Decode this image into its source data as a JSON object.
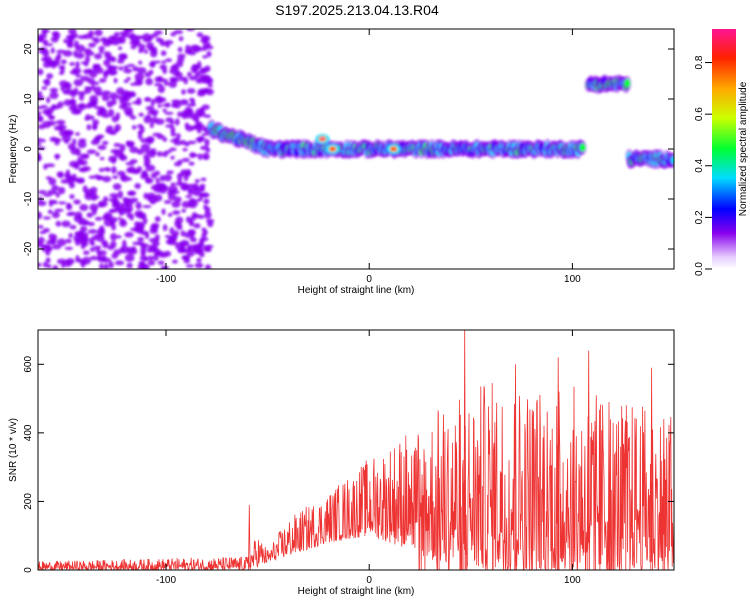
{
  "title": "S197.2025.213.04.13.R04",
  "chart_data": [
    {
      "type": "heatmap",
      "xlabel": "Height of straight line (km)",
      "ylabel": "Frequency (Hz)",
      "xlim": [
        -163,
        150
      ],
      "ylim": [
        -24,
        24
      ],
      "xticks": [
        -100,
        0,
        100
      ],
      "yticks": [
        -20,
        -10,
        0,
        10,
        20
      ],
      "colorbar": {
        "label": "Normalized spectral amplitude",
        "ticks": [
          0.0,
          0.2,
          0.4,
          0.6,
          0.8
        ],
        "range": [
          0,
          0.93
        ]
      },
      "features": [
        {
          "kind": "noise",
          "x": [
            -163,
            -78
          ],
          "y": [
            -24,
            24
          ],
          "amplitude": 0.12
        },
        {
          "kind": "ridge",
          "x": [
            -78,
            -50
          ],
          "y_start": 4,
          "y_end": 0,
          "amplitude": 0.35
        },
        {
          "kind": "ridge",
          "x": [
            -50,
            105
          ],
          "y": 0,
          "amplitude": 0.3
        },
        {
          "kind": "blob",
          "x": -23,
          "y": 2,
          "amplitude": 0.85
        },
        {
          "kind": "blob",
          "x": -18,
          "y": 0,
          "amplitude": 0.8
        },
        {
          "kind": "blob",
          "x": 12,
          "y": 0,
          "amplitude": 0.8
        },
        {
          "kind": "ridge",
          "x": [
            108,
            127
          ],
          "y": 13,
          "amplitude": 0.35
        },
        {
          "kind": "ridge",
          "x": [
            128,
            150
          ],
          "y": -2,
          "amplitude": 0.3
        }
      ]
    },
    {
      "type": "line",
      "xlabel": "Height of straight line (km)",
      "ylabel": "SNR (10 * v/v)",
      "xlim": [
        -163,
        150
      ],
      "ylim": [
        0,
        700
      ],
      "xticks": [
        -100,
        0,
        100
      ],
      "yticks": [
        0,
        200,
        400,
        600
      ],
      "color": "#ee3333",
      "envelope": [
        {
          "x": -163,
          "lo": 0,
          "hi": 25
        },
        {
          "x": -60,
          "lo": 0,
          "hi": 40
        },
        {
          "x": -55,
          "lo": 10,
          "hi": 110
        },
        {
          "x": -50,
          "lo": 20,
          "hi": 60
        },
        {
          "x": -40,
          "lo": 40,
          "hi": 150
        },
        {
          "x": -20,
          "lo": 80,
          "hi": 230
        },
        {
          "x": 0,
          "lo": 100,
          "hi": 330
        },
        {
          "x": 20,
          "lo": 60,
          "hi": 420
        },
        {
          "x": 40,
          "lo": 0,
          "hi": 500
        },
        {
          "x": 60,
          "lo": 0,
          "hi": 560
        },
        {
          "x": 100,
          "lo": 0,
          "hi": 540
        },
        {
          "x": 150,
          "lo": 0,
          "hi": 460
        }
      ],
      "peaks": [
        {
          "x": -59,
          "y": 190
        },
        {
          "x": 34,
          "y": 460
        },
        {
          "x": 47,
          "y": 710
        },
        {
          "x": 72,
          "y": 600
        },
        {
          "x": 93,
          "y": 620
        },
        {
          "x": 108,
          "y": 640
        },
        {
          "x": 118,
          "y": 490
        },
        {
          "x": 139,
          "y": 590
        },
        {
          "x": 145,
          "y": 440
        }
      ]
    }
  ]
}
